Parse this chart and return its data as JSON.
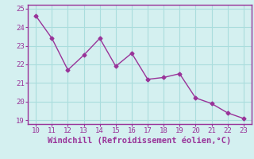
{
  "x": [
    10,
    11,
    12,
    13,
    14,
    15,
    16,
    17,
    18,
    19,
    20,
    21,
    22,
    23
  ],
  "y": [
    24.6,
    23.4,
    21.7,
    22.5,
    23.4,
    21.9,
    22.6,
    21.2,
    21.3,
    21.5,
    20.2,
    19.9,
    19.4,
    19.1
  ],
  "line_color": "#993399",
  "marker": "D",
  "marker_size": 2.5,
  "bg_color": "#d4f0f0",
  "grid_color": "#aadddd",
  "xlabel": "Windchill (Refroidissement éolien,°C)",
  "xlabel_color": "#993399",
  "tick_color": "#993399",
  "spine_color": "#993399",
  "xlim": [
    9.5,
    23.5
  ],
  "ylim": [
    18.8,
    25.2
  ],
  "xticks": [
    10,
    11,
    12,
    13,
    14,
    15,
    16,
    17,
    18,
    19,
    20,
    21,
    22,
    23
  ],
  "yticks": [
    19,
    20,
    21,
    22,
    23,
    24,
    25
  ],
  "xlabel_fontsize": 7.5,
  "tick_fontsize": 6.5
}
